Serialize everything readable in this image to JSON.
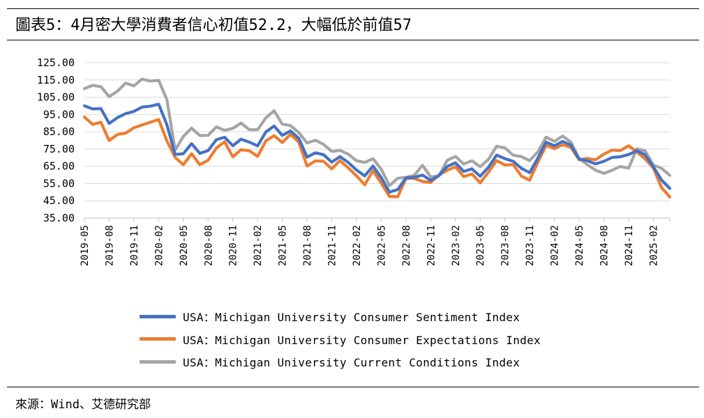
{
  "header": {
    "title": "圖表5：4月密大學消費者信心初值52.2，大幅低於前值57"
  },
  "footer": {
    "source": "來源：Wind、艾德研究部"
  },
  "chart_data": {
    "type": "line",
    "title": "圖表5：4月密大學消費者信心初值52.2，大幅低於前值57",
    "xlabel": "",
    "ylabel": "",
    "ylim": [
      35,
      125
    ],
    "yticks": [
      "125.00",
      "115.00",
      "105.00",
      "95.00",
      "85.00",
      "75.00",
      "65.00",
      "55.00",
      "45.00",
      "35.00"
    ],
    "grid": true,
    "legend_position": "bottom",
    "x": [
      "2019-05",
      "2019-06",
      "2019-07",
      "2019-08",
      "2019-09",
      "2019-10",
      "2019-11",
      "2019-12",
      "2020-01",
      "2020-02",
      "2020-03",
      "2020-04",
      "2020-05",
      "2020-06",
      "2020-07",
      "2020-08",
      "2020-09",
      "2020-10",
      "2020-11",
      "2020-12",
      "2021-01",
      "2021-02",
      "2021-03",
      "2021-04",
      "2021-05",
      "2021-06",
      "2021-07",
      "2021-08",
      "2021-09",
      "2021-10",
      "2021-11",
      "2021-12",
      "2022-01",
      "2022-02",
      "2022-03",
      "2022-04",
      "2022-05",
      "2022-06",
      "2022-07",
      "2022-08",
      "2022-09",
      "2022-10",
      "2022-11",
      "2022-12",
      "2023-01",
      "2023-02",
      "2023-03",
      "2023-04",
      "2023-05",
      "2023-06",
      "2023-07",
      "2023-08",
      "2023-09",
      "2023-10",
      "2023-11",
      "2023-12",
      "2024-01",
      "2024-02",
      "2024-03",
      "2024-04",
      "2024-05",
      "2024-06",
      "2024-07",
      "2024-08",
      "2024-09",
      "2024-10",
      "2024-11",
      "2024-12",
      "2025-01",
      "2025-02",
      "2025-03",
      "2025-04"
    ],
    "xticks": [
      "2019-05",
      "2019-08",
      "2019-11",
      "2020-02",
      "2020-05",
      "2020-08",
      "2020-11",
      "2021-02",
      "2021-05",
      "2021-08",
      "2021-11",
      "2022-02",
      "2022-05",
      "2022-08",
      "2022-11",
      "2023-02",
      "2023-05",
      "2023-08",
      "2023-11",
      "2024-02",
      "2024-05",
      "2024-08",
      "2024-11",
      "2025-02"
    ],
    "series": [
      {
        "name": "USA：Michigan University Consumer Sentiment Index",
        "color": "#4472C4",
        "values": [
          100.0,
          98.2,
          98.4,
          89.8,
          93.2,
          95.5,
          96.8,
          99.3,
          99.8,
          101.0,
          89.1,
          71.8,
          72.3,
          78.1,
          72.5,
          74.1,
          80.4,
          81.8,
          76.9,
          80.7,
          79.0,
          76.8,
          84.9,
          88.3,
          82.9,
          85.5,
          81.2,
          70.3,
          72.8,
          71.7,
          67.4,
          70.6,
          67.2,
          62.8,
          59.4,
          65.2,
          58.4,
          50.0,
          51.5,
          58.2,
          58.6,
          59.9,
          56.8,
          59.7,
          64.9,
          67.0,
          62.0,
          63.5,
          59.2,
          64.4,
          71.5,
          69.4,
          67.9,
          63.8,
          61.3,
          69.7,
          79.0,
          76.9,
          79.4,
          77.2,
          69.1,
          68.2,
          66.4,
          67.9,
          70.1,
          70.5,
          71.8,
          74.0,
          71.7,
          64.7,
          57.0,
          52.2
        ]
      },
      {
        "name": "USA：Michigan University Consumer Expectations Index",
        "color": "#ED7D31",
        "values": [
          93.5,
          89.3,
          90.5,
          79.9,
          83.4,
          84.2,
          87.3,
          88.9,
          90.5,
          92.1,
          79.7,
          70.1,
          65.9,
          72.3,
          65.9,
          68.5,
          75.6,
          79.2,
          70.5,
          74.6,
          74.0,
          70.7,
          79.7,
          82.7,
          78.8,
          83.5,
          79.0,
          65.1,
          68.1,
          67.9,
          63.5,
          68.3,
          64.1,
          59.4,
          54.3,
          62.5,
          55.2,
          47.5,
          47.3,
          58.0,
          58.0,
          56.2,
          55.6,
          59.9,
          62.7,
          64.7,
          59.0,
          60.5,
          55.4,
          61.5,
          68.3,
          65.7,
          66.0,
          59.3,
          56.9,
          67.4,
          77.1,
          75.2,
          77.4,
          76.0,
          68.8,
          69.6,
          68.8,
          72.1,
          74.4,
          74.1,
          76.9,
          73.3,
          69.3,
          64.0,
          52.6,
          47.2
        ]
      },
      {
        "name": "USA：Michigan University Current Conditions Index",
        "color": "#A5A5A5",
        "values": [
          110.0,
          111.9,
          111.1,
          105.3,
          108.5,
          113.2,
          111.6,
          115.5,
          114.4,
          114.8,
          103.7,
          74.3,
          82.3,
          87.1,
          82.8,
          82.9,
          87.8,
          85.8,
          87.0,
          90.0,
          86.2,
          86.2,
          93.0,
          97.2,
          89.4,
          88.6,
          84.5,
          78.5,
          80.1,
          77.7,
          73.6,
          74.2,
          72.0,
          68.2,
          67.2,
          69.4,
          63.3,
          53.8,
          58.1,
          58.6,
          59.7,
          65.6,
          58.8,
          59.4,
          68.4,
          70.7,
          66.3,
          68.2,
          64.7,
          69.0,
          76.6,
          75.7,
          71.4,
          70.6,
          68.3,
          73.3,
          81.9,
          79.4,
          82.5,
          79.0,
          69.6,
          65.9,
          62.7,
          60.9,
          62.7,
          64.9,
          63.9,
          75.1,
          74.0,
          65.7,
          63.8,
          59.8
        ]
      }
    ]
  }
}
